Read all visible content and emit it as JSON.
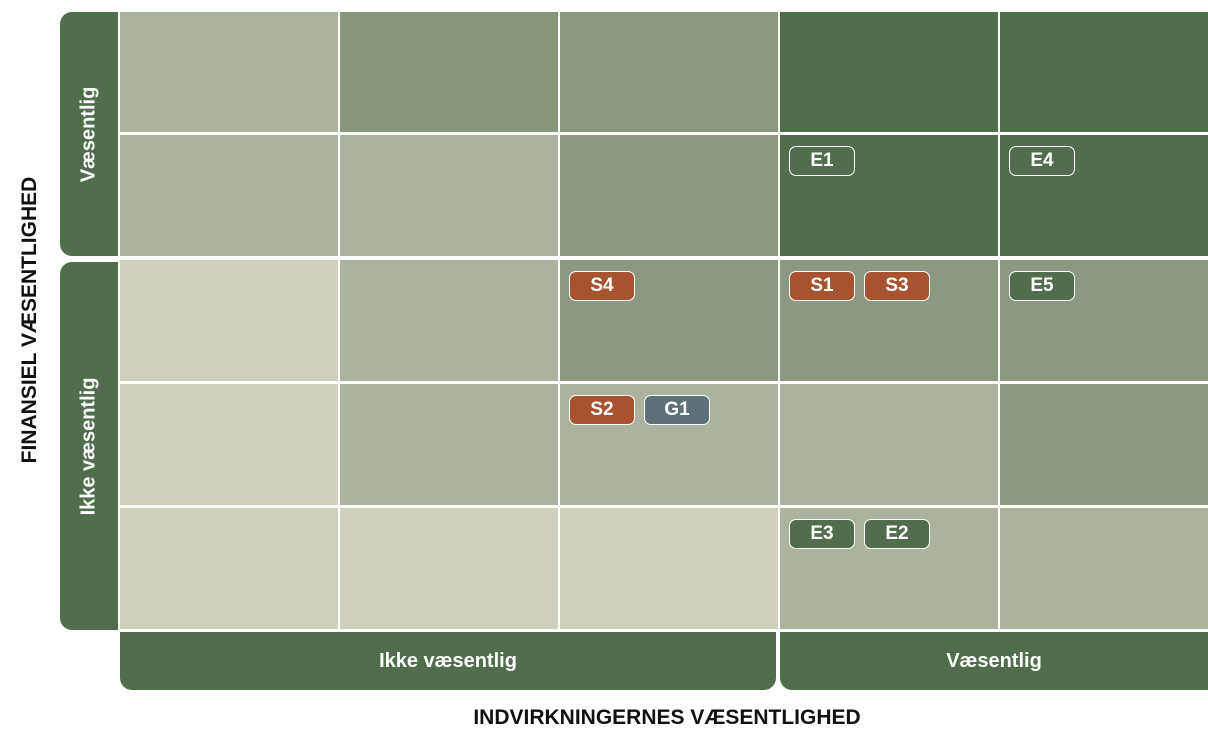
{
  "y_axis": {
    "title": "FINANSIEL VÆSENTLIGHED",
    "groups": [
      "Væsentlig",
      "Ikke væsentlig"
    ]
  },
  "x_axis": {
    "title": "INDVIRKNINGERNES VÆSENTLIGHED",
    "groups": [
      "Ikke væsentlig",
      "Væsentlig"
    ]
  },
  "grid": {
    "rows": [
      [
        [],
        [],
        [],
        [],
        []
      ],
      [
        [],
        [],
        [],
        [
          {
            "label": "E1",
            "color": "#506e4c"
          }
        ],
        [
          {
            "label": "E4",
            "color": "#506e4c"
          }
        ]
      ],
      [
        [],
        [],
        [
          {
            "label": "S4",
            "color": "#a8532f"
          }
        ],
        [
          {
            "label": "S1",
            "color": "#a8532f"
          },
          {
            "label": "S3",
            "color": "#a8532f"
          }
        ],
        [
          {
            "label": "E5",
            "color": "#506e4c"
          }
        ]
      ],
      [
        [],
        [],
        [
          {
            "label": "S2",
            "color": "#a8532f"
          },
          {
            "label": "G1",
            "color": "#5e7178"
          }
        ],
        [],
        []
      ],
      [
        [],
        [],
        [],
        [
          {
            "label": "E3",
            "color": "#506e4c"
          },
          {
            "label": "E2",
            "color": "#506e4c"
          }
        ],
        []
      ]
    ]
  }
}
